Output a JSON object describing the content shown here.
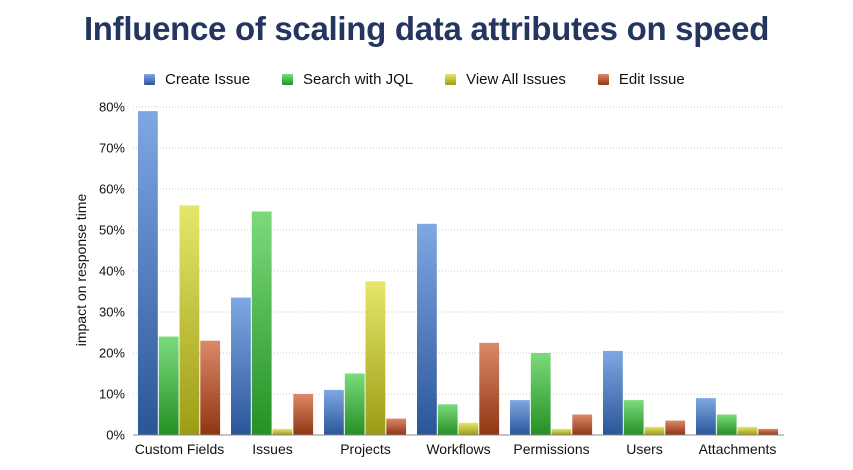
{
  "chart_data": {
    "type": "bar",
    "title": "Influence of scaling data attributes on speed",
    "ylabel": "impact on response time",
    "xlabel": "",
    "categories": [
      "Custom Fields",
      "Issues",
      "Projects",
      "Workflows",
      "Permissions",
      "Users",
      "Attachments"
    ],
    "series": [
      {
        "name": "Create Issue",
        "values": [
          79,
          33.5,
          11,
          51.5,
          8.5,
          20.5,
          9
        ],
        "color": "#3a78d4"
      },
      {
        "name": "Search with JQL",
        "values": [
          24,
          54.5,
          15,
          7.5,
          20,
          8.5,
          5
        ],
        "color": "#34c834"
      },
      {
        "name": "View All Issues",
        "values": [
          56,
          1.5,
          37.5,
          3,
          1.5,
          2,
          2
        ],
        "color": "#d8d81c"
      },
      {
        "name": "Edit Issue",
        "values": [
          23,
          10,
          4,
          22.5,
          5,
          3.5,
          1.5
        ],
        "color": "#c84a18"
      }
    ],
    "ylim": [
      0,
      80
    ],
    "yticks": [
      0,
      10,
      20,
      30,
      40,
      50,
      60,
      70,
      80
    ],
    "ytick_format": "{v}%",
    "grid": true,
    "legend_position": "top"
  }
}
